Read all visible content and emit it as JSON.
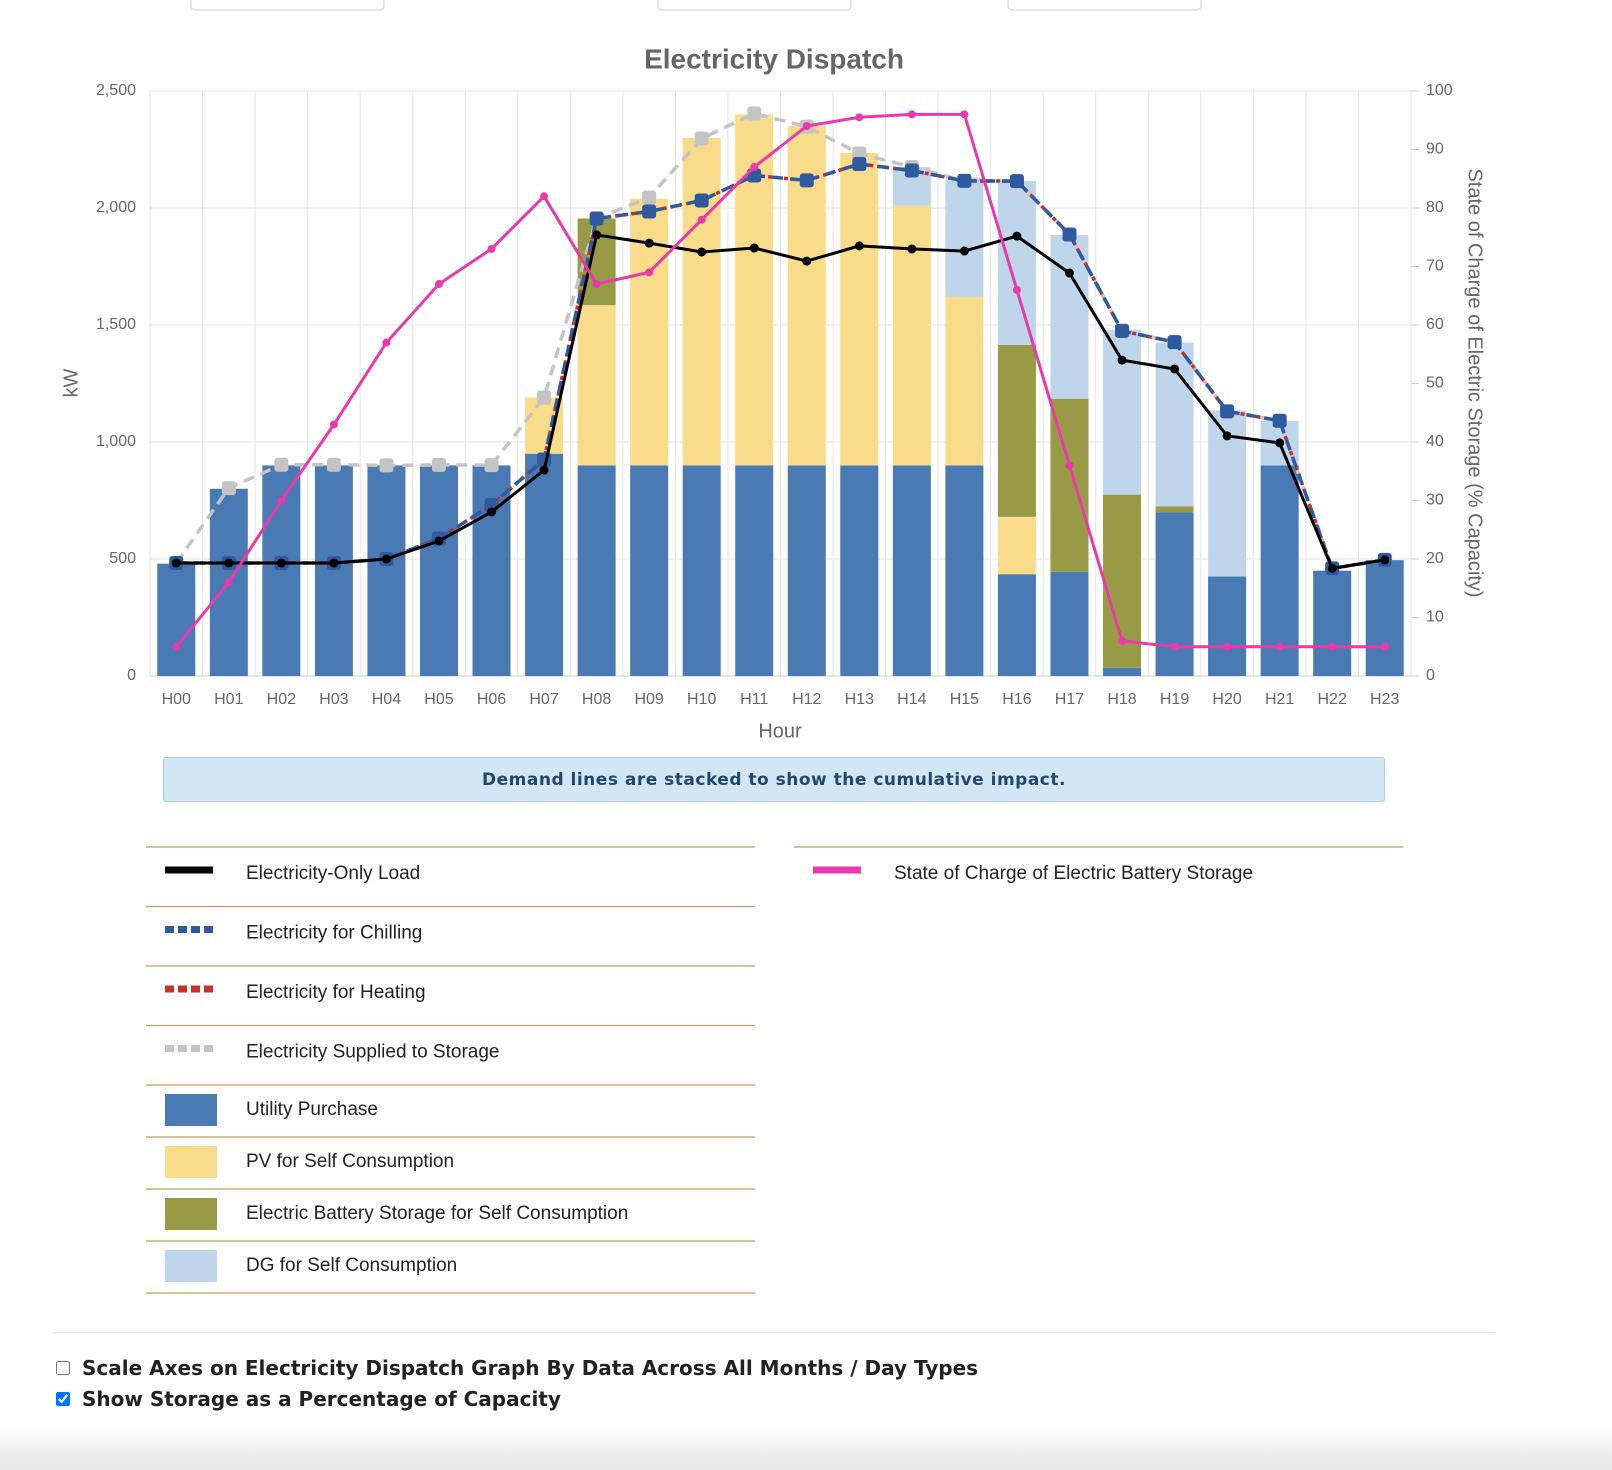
{
  "chart_data": {
    "type": "bar",
    "title": "Electricity Dispatch",
    "x_label": "Hour",
    "y_label": "kW",
    "y2_label": "State of Charge of Electric Storage (% Capacity)",
    "categories": [
      "H00",
      "H01",
      "H02",
      "H03",
      "H04",
      "H05",
      "H06",
      "H07",
      "H08",
      "H09",
      "H10",
      "H11",
      "H12",
      "H13",
      "H14",
      "H15",
      "H16",
      "H17",
      "H18",
      "H19",
      "H20",
      "H21",
      "H22",
      "H23"
    ],
    "series": [
      {
        "name": "Electricity-Only Load",
        "type": "line",
        "stack": "demand",
        "color": "#000000",
        "dash": "solid",
        "marker": "circle",
        "values": [
          483,
          483,
          483,
          483,
          500,
          577,
          701,
          880,
          1885,
          1850,
          1812,
          1829,
          1773,
          1838,
          1825,
          1816,
          1880,
          1722,
          1350,
          1312,
          1026,
          996,
          460,
          496
        ]
      },
      {
        "name": "Electricity for Chilling",
        "type": "line",
        "stack": "demand",
        "color": "#2f5aa0",
        "dash": "dashed",
        "marker": "square",
        "values": [
          0,
          0,
          0,
          0,
          0,
          10,
          30,
          45,
          70,
          135,
          220,
          310,
          345,
          350,
          335,
          300,
          235,
          165,
          125,
          115,
          105,
          95,
          0,
          0
        ]
      },
      {
        "name": "Electricity for Heating",
        "type": "line",
        "stack": "demand",
        "color": "#c8302a",
        "dash": "dotted",
        "marker": "none",
        "values": [
          0,
          0,
          0,
          0,
          0,
          0,
          0,
          0,
          0,
          0,
          0,
          0,
          0,
          0,
          0,
          0,
          0,
          0,
          0,
          0,
          0,
          0,
          0,
          0
        ]
      },
      {
        "name": "Electricity Supplied to Storage",
        "type": "line",
        "stack": "demand",
        "color": "#c4c4c4",
        "dash": "dashed",
        "marker": "square",
        "values": [
          0,
          320,
          420,
          420,
          400,
          315,
          170,
          265,
          0,
          60,
          265,
          265,
          230,
          45,
          15,
          0,
          0,
          0,
          0,
          0,
          0,
          0,
          0,
          0
        ]
      },
      {
        "name": "Utility Purchase",
        "type": "bar",
        "color": "#4a7ab4",
        "values": [
          480,
          800,
          900,
          900,
          900,
          900,
          900,
          950,
          900,
          900,
          900,
          900,
          900,
          900,
          900,
          900,
          435,
          445,
          35,
          700,
          425,
          900,
          450,
          495
        ]
      },
      {
        "name": "PV for Self Consumption",
        "type": "bar",
        "color": "#f9dc8a",
        "values": [
          0,
          0,
          0,
          0,
          0,
          0,
          0,
          240,
          685,
          1140,
          1400,
          1500,
          1450,
          1335,
          1110,
          720,
          245,
          0,
          0,
          0,
          0,
          0,
          0,
          0
        ]
      },
      {
        "name": "Electric Battery Storage for Self Consumption",
        "type": "bar",
        "color": "#999a45",
        "values": [
          0,
          0,
          0,
          0,
          0,
          0,
          0,
          0,
          370,
          0,
          0,
          0,
          0,
          0,
          0,
          0,
          735,
          740,
          740,
          25,
          0,
          0,
          0,
          0
        ]
      },
      {
        "name": "DG for Self Consumption",
        "type": "bar",
        "color": "#bfd6ea",
        "values": [
          0,
          0,
          0,
          0,
          0,
          0,
          0,
          0,
          0,
          0,
          0,
          0,
          0,
          0,
          165,
          510,
          700,
          700,
          705,
          700,
          710,
          190,
          0,
          0
        ]
      },
      {
        "name": "State of Charge of Electric Battery Storage",
        "type": "line",
        "axis": "y2",
        "color": "#e83aa8",
        "dash": "solid",
        "marker": "circle",
        "values": [
          5,
          16,
          30,
          43,
          57,
          67,
          73,
          82,
          67,
          69,
          78,
          87,
          94,
          95.5,
          96,
          96,
          66,
          36,
          6,
          5,
          5,
          5,
          5,
          5
        ]
      }
    ],
    "ylim": [
      0,
      2500
    ],
    "yticks": [
      0,
      500,
      {
        "value": 1000,
        "label": "1,000"
      },
      {
        "value": 1500,
        "label": "1,500"
      },
      {
        "value": 2000,
        "label": "2,000"
      },
      {
        "value": 2500,
        "label": "2,500"
      }
    ],
    "y2lim": [
      0,
      100
    ],
    "y2ticks": [
      0,
      10,
      20,
      30,
      40,
      50,
      60,
      70,
      80,
      90,
      100
    ],
    "grid": true
  },
  "note": "Demand lines are stacked to show the cumulative impact.",
  "controls": [
    {
      "label": "Scale Axes on Electricity Dispatch Graph By Data Across All Months / Day Types",
      "checked": false
    },
    {
      "label": "Show Storage as a Percentage of Capacity",
      "checked": true
    }
  ]
}
